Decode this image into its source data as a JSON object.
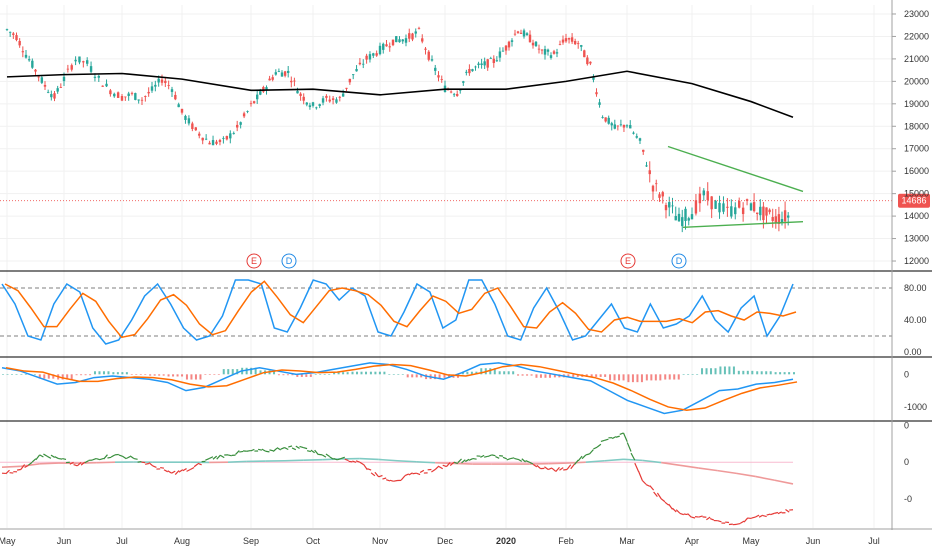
{
  "colors": {
    "up": "#26a69a",
    "down": "#ef5350",
    "ma": "#000000",
    "triangle": "#4caf50",
    "price_line": "#ef5350",
    "stoch_k": "#2196f3",
    "stoch_d": "#ff6d00",
    "macd_line": "#2196f3",
    "signal_line": "#ff6d00",
    "hist_pos": "#26a69a",
    "hist_neg": "#ef5350",
    "osc_pos": "#388e3c",
    "osc_neg": "#e53935",
    "osc_ma_pos": "#80cbc4",
    "osc_ma_neg": "#ef9a9a"
  },
  "chart_data": [
    {
      "type": "candlestick",
      "pane": "price",
      "ylim": [
        11600,
        23400
      ],
      "y_ticks": [
        "23000",
        "22000",
        "21000",
        "20000",
        "19000",
        "18000",
        "17000",
        "16000",
        "15000",
        "14000",
        "13000",
        "12000"
      ],
      "current_price_label": "14686",
      "current_price": 14686,
      "series": [
        {
          "name": "",
          "kind": "moving_average",
          "points": [
            [
              "May",
              20200
            ],
            [
              "Jun",
              20300
            ],
            [
              "Jul",
              20350
            ],
            [
              "Aug",
              20100
            ],
            [
              "Sep",
              19600
            ],
            [
              "Oct",
              19650
            ],
            [
              "Nov",
              19400
            ],
            [
              "Dec",
              19650
            ],
            [
              "2020",
              19650
            ],
            [
              "Feb",
              20000
            ],
            [
              "Mar",
              20450
            ],
            [
              "Apr",
              19900
            ],
            [
              "May",
              19100
            ],
            [
              "Jun",
              18400
            ]
          ]
        },
        {
          "name": "",
          "kind": "triangle_upper",
          "points": [
            [
              "Mar",
              17100
            ],
            [
              "Jun",
              15100
            ]
          ]
        },
        {
          "name": "",
          "kind": "triangle_lower",
          "points": [
            [
              "Mar",
              13500
            ],
            [
              "Jun",
              13750
            ]
          ]
        }
      ],
      "close_path": [
        [
          "May",
          22300
        ],
        [
          "May",
          22000
        ],
        [
          "May",
          21200
        ],
        [
          "May",
          20500
        ],
        [
          "May",
          19800
        ],
        [
          "May",
          19300
        ],
        [
          "Jun",
          20100
        ],
        [
          "Jun",
          21000
        ],
        [
          "Jun",
          20800
        ],
        [
          "Jun",
          20100
        ],
        [
          "Jun",
          19600
        ],
        [
          "Jul",
          19300
        ],
        [
          "Jul",
          19400
        ],
        [
          "Jul",
          19200
        ],
        [
          "Jul",
          19600
        ],
        [
          "Jul",
          20100
        ],
        [
          "Jul",
          19700
        ],
        [
          "Aug",
          18600
        ],
        [
          "Aug",
          17800
        ],
        [
          "Aug",
          17300
        ],
        [
          "Aug",
          17300
        ],
        [
          "Aug",
          17900
        ],
        [
          "Sep",
          18900
        ],
        [
          "Sep",
          19600
        ],
        [
          "Sep",
          20400
        ],
        [
          "Sep",
          20400
        ],
        [
          "Sep",
          19400
        ],
        [
          "Oct",
          18900
        ],
        [
          "Oct",
          19200
        ],
        [
          "Oct",
          19200
        ],
        [
          "Oct",
          20300
        ],
        [
          "Oct",
          21000
        ],
        [
          "Nov",
          21400
        ],
        [
          "Nov",
          21800
        ],
        [
          "Nov",
          21900
        ],
        [
          "Nov",
          22200
        ],
        [
          "Nov",
          20800
        ],
        [
          "Dec",
          19700
        ],
        [
          "Dec",
          19500
        ],
        [
          "Dec",
          20500
        ],
        [
          "Dec",
          20700
        ],
        [
          "Dec",
          20900
        ],
        [
          "2020",
          21500
        ],
        [
          "2020",
          22300
        ],
        [
          "2020",
          21900
        ],
        [
          "2020",
          21300
        ],
        [
          "2020",
          21200
        ],
        [
          "Feb",
          21900
        ],
        [
          "Feb",
          21700
        ],
        [
          "Feb",
          20700
        ],
        [
          "Feb",
          18500
        ],
        [
          "Feb",
          17900
        ],
        [
          "Mar",
          18100
        ],
        [
          "Mar",
          17300
        ],
        [
          "Mar",
          15400
        ],
        [
          "Mar",
          14600
        ],
        [
          "Mar",
          13800
        ],
        [
          "Apr",
          14200
        ],
        [
          "Apr",
          14900
        ],
        [
          "Apr",
          14500
        ],
        [
          "Apr",
          14200
        ],
        [
          "Apr",
          14400
        ],
        [
          "May",
          14500
        ],
        [
          "May",
          14100
        ],
        [
          "May",
          13900
        ],
        [
          "May",
          14000
        ],
        [
          "May",
          14686
        ]
      ],
      "earnings_markers": [
        {
          "label": "E",
          "at": "Sep"
        },
        {
          "label": "D",
          "at": "Sep"
        },
        {
          "label": "E",
          "at": "Mar"
        },
        {
          "label": "D",
          "at": "Mar"
        }
      ]
    },
    {
      "type": "line",
      "pane": "stochastic",
      "ylim": [
        0,
        100
      ],
      "y_ticks": [
        "80.00",
        "40.00",
        "0.00"
      ],
      "levels": [
        80,
        20
      ],
      "series": [
        {
          "name": "",
          "role": "K"
        },
        {
          "name": "",
          "role": "D"
        }
      ],
      "values_k": [
        85,
        60,
        20,
        15,
        60,
        85,
        75,
        30,
        10,
        15,
        40,
        70,
        85,
        60,
        30,
        15,
        20,
        45,
        90,
        90,
        85,
        30,
        25,
        55,
        90,
        85,
        65,
        80,
        70,
        25,
        20,
        50,
        85,
        75,
        30,
        40,
        90,
        90,
        60,
        20,
        15,
        55,
        80,
        50,
        15,
        20,
        40,
        60,
        30,
        25,
        60,
        30,
        35,
        45,
        70,
        40,
        25,
        55,
        70,
        20,
        45,
        85
      ]
    },
    {
      "type": "line",
      "pane": "macd",
      "ylim": [
        -1400,
        500
      ],
      "y_ticks": [
        "0",
        "-1000"
      ],
      "series": [
        {
          "name": "",
          "role": "macd"
        },
        {
          "name": "",
          "role": "signal"
        },
        {
          "name": "",
          "role": "histogram"
        }
      ],
      "values_macd": [
        200,
        100,
        -100,
        -300,
        -250,
        -100,
        -50,
        -100,
        -150,
        -250,
        -500,
        -400,
        -150,
        100,
        200,
        100,
        0,
        50,
        150,
        250,
        350,
        300,
        150,
        -50,
        -150,
        50,
        300,
        350,
        250,
        100,
        0,
        -100,
        -200,
        -500,
        -800,
        -1000,
        -1200,
        -1100,
        -800,
        -500,
        -450,
        -300,
        -250,
        -150
      ]
    },
    {
      "type": "line",
      "pane": "oscillator",
      "ylim": [
        -1,
        1
      ],
      "y_ticks": [
        "0",
        "0",
        "-0"
      ],
      "series": [
        {
          "name": "",
          "role": "oscillator"
        },
        {
          "name": "",
          "role": "average"
        }
      ],
      "values_osc": [
        -0.3,
        -0.2,
        0.2,
        0.1,
        -0.1,
        0.1,
        0.2,
        0.1,
        -0.1,
        -0.3,
        -0.2,
        0.1,
        0.2,
        0.3,
        0.3,
        0.4,
        0.4,
        0.2,
        0.1,
        0.0,
        -0.4,
        -0.5,
        -0.3,
        -0.2,
        0.0,
        0.1,
        0.2,
        0.1,
        0.0,
        -0.2,
        -0.2,
        0.2,
        0.6,
        0.8,
        -0.5,
        -1.0,
        -1.4,
        -1.5,
        -1.6,
        -1.7,
        -1.5,
        -1.4,
        -1.3
      ]
    }
  ],
  "x_axis": {
    "labels": [
      "May",
      "Jun",
      "Jul",
      "Aug",
      "Sep",
      "Oct",
      "Nov",
      "Dec",
      "2020",
      "Feb",
      "Mar",
      "Apr",
      "May",
      "Jun",
      "Jul"
    ]
  }
}
